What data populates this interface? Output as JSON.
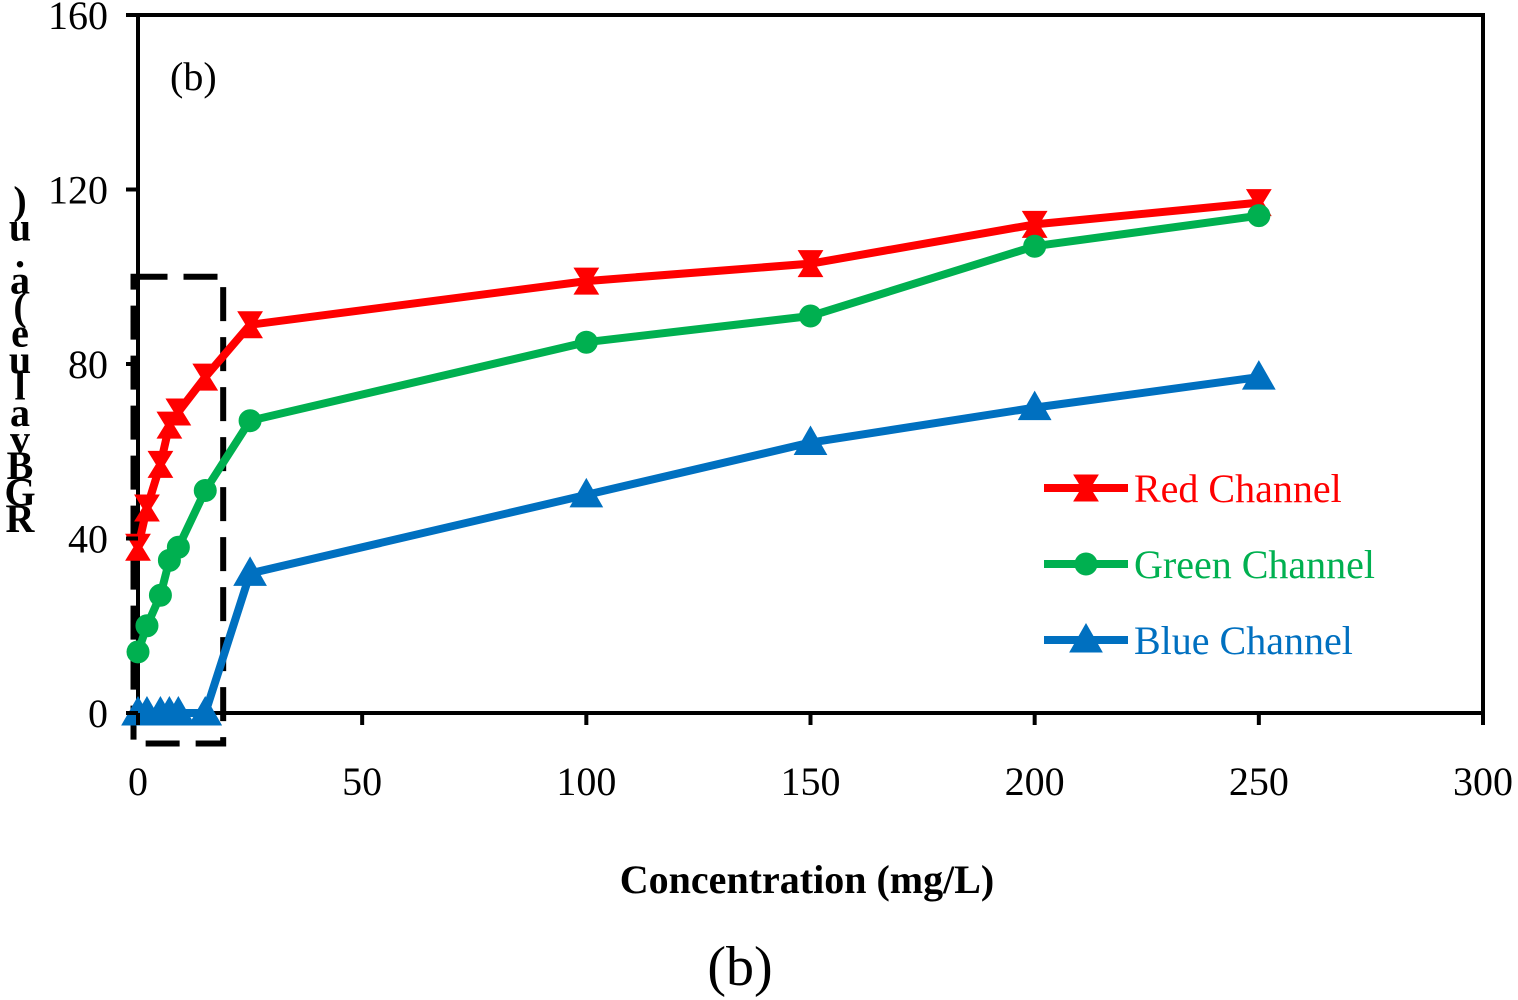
{
  "chart_data": {
    "type": "line",
    "panel_label": "(b)",
    "caption": "(b)",
    "xlabel": "Concentration (mg/L)",
    "ylabel": "RGB value (a.u.)",
    "ylabel_glyphs": [
      ")",
      "u",
      ".",
      "a",
      "(",
      "e",
      "u",
      "l",
      "a",
      "v",
      "B",
      "G",
      "R"
    ],
    "xlim": [
      0,
      300
    ],
    "ylim": [
      0,
      160
    ],
    "xticks": [
      0,
      50,
      100,
      150,
      200,
      250,
      300
    ],
    "yticks": [
      0,
      40,
      80,
      120,
      160
    ],
    "legend_position": "right",
    "highlight_box": {
      "x_range": [
        -1,
        19
      ],
      "y_range": [
        -7,
        100
      ],
      "style": "dashed"
    },
    "series": [
      {
        "name": "Red Channel",
        "color": "#ff0000",
        "marker": "bowtie",
        "x": [
          0,
          2,
          5,
          7,
          9,
          15,
          25,
          100,
          150,
          200,
          250
        ],
        "y": [
          38,
          47,
          57,
          66,
          69,
          77,
          89,
          99,
          103,
          112,
          117
        ]
      },
      {
        "name": "Green Channel",
        "color": "#00b050",
        "marker": "circle",
        "x": [
          0,
          2,
          5,
          7,
          9,
          15,
          25,
          100,
          150,
          200,
          250
        ],
        "y": [
          14,
          20,
          27,
          35,
          38,
          51,
          67,
          85,
          91,
          107,
          114
        ]
      },
      {
        "name": "Blue Channel",
        "color": "#0070c0",
        "marker": "triangle",
        "x": [
          0,
          2,
          5,
          7,
          9,
          15,
          25,
          100,
          150,
          200,
          250
        ],
        "y": [
          0,
          0,
          0,
          0,
          0,
          0,
          32,
          50,
          62,
          70,
          77
        ]
      }
    ]
  }
}
